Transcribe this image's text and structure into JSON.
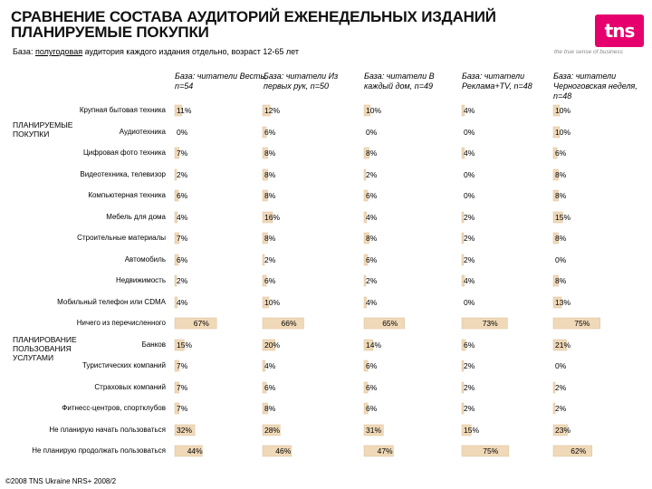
{
  "title_line1": "СРАВНЕНИЕ СОСТАВА АУДИТОРИЙ ЕЖЕНЕДЕЛЬНЫХ ИЗДАНИЙ",
  "title_line2": "ПЛАНИРУЕМЫЕ ПОКУПКИ",
  "subtitle_prefix": "База: ",
  "subtitle_underlined": "полугодовая",
  "subtitle_rest": " аудитория каждого издания отдельно, возраст 12-65 лет",
  "logo_text": "tns",
  "tagline": "the true sense of business",
  "copyright": "©2008 TNS Ukraine NRS+ 2008/2",
  "colors": {
    "bar": "#f0d9b8",
    "bar_edge": "#dcc09a",
    "logo": "#e5006d"
  },
  "sections": [
    {
      "label": "ПЛАНИРУЕМЫЕ ПОКУПКИ"
    },
    {
      "label": "ПЛАНИРОВАНИЕ ПОЛЬЗОВАНИЯ УСЛУГАМИ"
    }
  ],
  "chart_data": {
    "type": "bar",
    "columns": [
      "База: читатели Весть, n=54",
      "База: читатели Из первых рук, n=50",
      "База: читатели В каждый дом, n=49",
      "База: читатели Реклама+TV, n=48",
      "База: читатели Черноговская неделя, n=48"
    ],
    "categories": [
      "Крупная бытовая техника",
      "Аудиотехника",
      "Цифровая фото техника",
      "Видеотехника, телевизор",
      "Компьютерная техника",
      "Мебель для дома",
      "Строительные материалы",
      "Автомобиль",
      "Недвижимость",
      "Мобильный телефон или CDMA",
      "Ничего из перечисленного",
      "Банков",
      "Туристических компаний",
      "Страховых компаний",
      "Фитнесс-центров, спортклубов",
      "Не планирую начать пользоваться",
      "Не планирую продолжать пользоваться"
    ],
    "series": [
      {
        "values": [
          11,
          0,
          7,
          2,
          6,
          4,
          7,
          6,
          2,
          4,
          67,
          15,
          7,
          7,
          7,
          32,
          44
        ]
      },
      {
        "values": [
          12,
          6,
          8,
          8,
          8,
          16,
          8,
          2,
          6,
          10,
          66,
          20,
          4,
          6,
          8,
          28,
          46
        ]
      },
      {
        "values": [
          10,
          0,
          8,
          2,
          6,
          4,
          8,
          6,
          2,
          4,
          65,
          14,
          6,
          6,
          6,
          31,
          47
        ]
      },
      {
        "values": [
          4,
          0,
          4,
          0,
          0,
          2,
          2,
          2,
          4,
          0,
          73,
          6,
          2,
          2,
          2,
          15,
          75
        ]
      },
      {
        "values": [
          10,
          10,
          6,
          8,
          8,
          15,
          8,
          0,
          8,
          13,
          75,
          21,
          0,
          2,
          2,
          23,
          62
        ]
      }
    ],
    "labels": [
      [
        "11%",
        "0%",
        "7%",
        "2%",
        "6%",
        "4%",
        "7%",
        "6%",
        "2%",
        "4%",
        "67%",
        "15%",
        "7%",
        "7%",
        "7%",
        "32%",
        "44%"
      ],
      [
        "12%",
        "6%",
        "8%",
        "8%",
        "8%",
        "16%",
        "8%",
        "2%",
        "6%",
        "10%",
        "66%",
        "20%",
        "4%",
        "6%",
        "8%",
        "28%",
        "46%"
      ],
      [
        "10%",
        "0%",
        "8%",
        "2%",
        "6%",
        "4%",
        "8%",
        "6%",
        "2%",
        "4%",
        "65%",
        "14%",
        "6%",
        "6%",
        "6%",
        "31%",
        "47%"
      ],
      [
        "4%",
        "0%",
        "4%",
        "0%",
        "0%",
        "2%",
        "2%",
        "2%",
        "4%",
        "0%",
        "73%",
        "6%",
        "2%",
        "2%",
        "2%",
        "15%",
        "75%"
      ],
      [
        "10%",
        "10%",
        "6%",
        "8%",
        "8%",
        "15%",
        "8%",
        "0%",
        "8%",
        "13%",
        "75%",
        "21%",
        "0%",
        "2%",
        "2%",
        "23%",
        "62%"
      ]
    ],
    "xlim": [
      0,
      100
    ]
  }
}
